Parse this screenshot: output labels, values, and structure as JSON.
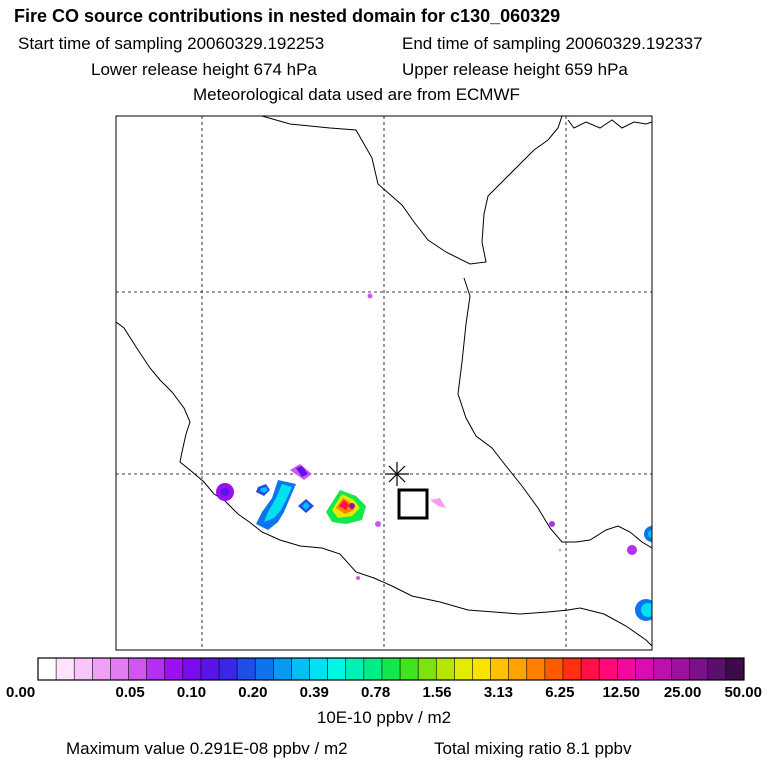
{
  "header": {
    "title": "Fire CO source contributions in nested domain for c130_060329",
    "start_time": "Start time of sampling 20060329.192253",
    "end_time": "End time of sampling 20060329.192337",
    "lower_height": "Lower release height  674 hPa",
    "upper_height": "Upper release height  659 hPa",
    "met_data": "Meteorological data used are from ECMWF"
  },
  "chart_data": {
    "type": "heatmap",
    "title": "Fire CO source contributions in nested domain for c130_060329",
    "grid": true,
    "colorbar": {
      "tick_labels": [
        "0.00",
        "0.05",
        "0.10",
        "0.20",
        "0.39",
        "0.78",
        "1.56",
        "3.13",
        "6.25",
        "12.50",
        "25.00",
        "50.00"
      ],
      "colors": [
        "#ffffff",
        "#fde3fc",
        "#f9c6f9",
        "#f29ff6",
        "#e27df2",
        "#cf56ee",
        "#b62ef0",
        "#9a10f2",
        "#7a0bee",
        "#5a14ea",
        "#3a26e8",
        "#1f4de8",
        "#0e74ec",
        "#089aef",
        "#05bff2",
        "#02e0f3",
        "#00f5e3",
        "#00f0b8",
        "#00ec86",
        "#12e84c",
        "#3ee41c",
        "#7de30a",
        "#b6e704",
        "#e2ec02",
        "#fbe301",
        "#ffc200",
        "#ffa300",
        "#ff7f00",
        "#ff5a00",
        "#ff2f10",
        "#ff1046",
        "#ff0a78",
        "#f20aa0",
        "#dc0cb3",
        "#bd0fae",
        "#9c129f",
        "#7a1287",
        "#5a0f6a",
        "#3d0a4a"
      ],
      "units": "10E-10 ppbv / m2"
    },
    "receptor": "star",
    "max_value": "Maximum value  0.291E-08 ppbv / m2",
    "total_mixing": "Total mixing ratio      8.1 ppbv"
  }
}
